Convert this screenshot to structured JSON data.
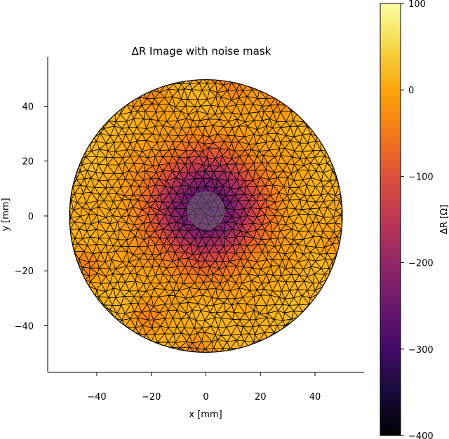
{
  "chart_data": {
    "type": "heatmap",
    "title": "ΔR Image with noise mask",
    "xlabel": "x [mm]",
    "ylabel": "y [mm]",
    "xlim": [
      -58,
      58
    ],
    "ylim": [
      -57,
      58
    ],
    "x_ticks": [
      -40,
      -20,
      0,
      20,
      40
    ],
    "y_ticks": [
      -40,
      -20,
      0,
      20,
      40
    ],
    "x_tick_labels": [
      "−40",
      "−20",
      "0",
      "20",
      "40"
    ],
    "y_tick_labels": [
      "−40",
      "−20",
      "0",
      "20",
      "40"
    ],
    "domain": {
      "shape": "circle",
      "center": [
        0,
        0
      ],
      "radius": 50
    },
    "colormap": "inferno",
    "colorbar": {
      "label": "ΔR [Ω]",
      "range": [
        -400,
        100
      ],
      "ticks": [
        100,
        0,
        -100,
        -200,
        -300,
        -400
      ],
      "tick_labels": [
        "100",
        "0",
        "−100",
        "−200",
        "−300",
        "−400"
      ]
    },
    "field": {
      "background_value": 15,
      "anomalies": [
        {
          "name": "central low",
          "center": [
            0,
            3
          ],
          "peak": -295,
          "sigma": 14
        },
        {
          "name": "edge spot upper",
          "center": [
            10,
            48
          ],
          "peak": -55,
          "sigma": 5
        },
        {
          "name": "edge spot upper-left",
          "center": [
            -22,
            44
          ],
          "peak": -45,
          "sigma": 5
        },
        {
          "name": "edge spot upper-right",
          "center": [
            28,
            42
          ],
          "peak": -50,
          "sigma": 5
        },
        {
          "name": "edge spot left",
          "center": [
            -44,
            -18
          ],
          "peak": -65,
          "sigma": 4.5
        },
        {
          "name": "edge spot lower-left",
          "center": [
            -22,
            -37
          ],
          "peak": -55,
          "sigma": 4.5
        },
        {
          "name": "edge spot lower",
          "center": [
            -4,
            -48
          ],
          "peak": -45,
          "sigma": 4
        },
        {
          "name": "edge spot right",
          "center": [
            47,
            -10
          ],
          "peak": -35,
          "sigma": 4
        }
      ],
      "noise_mask": {
        "center": [
          0,
          2
        ],
        "radius": 7
      }
    },
    "mesh": {
      "type": "triangular",
      "edge_color": "#000000",
      "approx_spacing": 3.1
    },
    "grid": false,
    "legend": "none"
  }
}
